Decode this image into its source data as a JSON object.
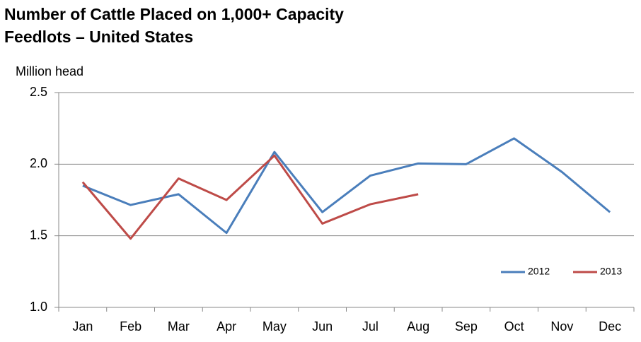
{
  "chart_data": {
    "type": "line",
    "title": [
      "Number of Cattle Placed on 1,000+ Capacity",
      "Feedlots – United States"
    ],
    "y_label": "Million head",
    "categories": [
      "Jan",
      "Feb",
      "Mar",
      "Apr",
      "May",
      "Jun",
      "Jul",
      "Aug",
      "Sep",
      "Oct",
      "Nov",
      "Dec"
    ],
    "series": [
      {
        "name": "2012",
        "color": "#4a7ebb",
        "values": [
          1.85,
          1.715,
          1.79,
          1.52,
          2.085,
          1.665,
          1.92,
          2.005,
          2.0,
          2.18,
          1.945,
          1.665
        ]
      },
      {
        "name": "2013",
        "color": "#be4b48",
        "values": [
          1.875,
          1.48,
          1.9,
          1.75,
          2.06,
          1.585,
          1.72,
          1.79,
          null,
          null,
          null,
          null
        ]
      }
    ],
    "ylim": [
      1,
      2.5
    ],
    "yticks": [
      {
        "value": 1,
        "label": "1.0"
      },
      1.5,
      {
        "value": 2,
        "label": "2.0"
      },
      2.5
    ],
    "grid": true,
    "legend": "lower right"
  }
}
